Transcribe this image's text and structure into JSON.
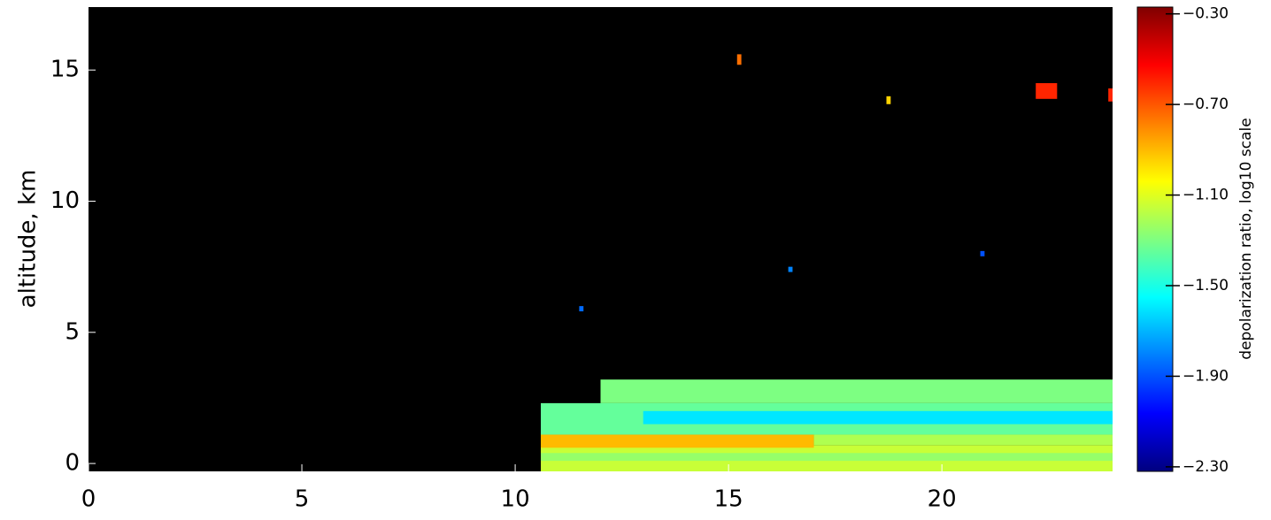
{
  "chart_data": {
    "type": "heatmap",
    "ylabel": "altitude, km",
    "colorbar_label": "depolarization ratio, log10 scale",
    "xlim": [
      0,
      24
    ],
    "xticks": [
      0,
      5,
      10,
      15,
      20
    ],
    "ylim": [
      -0.3,
      17.4
    ],
    "yticks": [
      0,
      5,
      10,
      15
    ],
    "clim": [
      -2.32,
      -0.27
    ],
    "cticks": [
      {
        "value": -0.3,
        "label": "−0.30"
      },
      {
        "value": -0.7,
        "label": "−0.70"
      },
      {
        "value": -1.1,
        "label": "−1.10"
      },
      {
        "value": -1.5,
        "label": "−1.50"
      },
      {
        "value": -1.9,
        "label": "−1.90"
      },
      {
        "value": -2.3,
        "label": "−2.30"
      }
    ],
    "colormap": "jet",
    "background": "#000000",
    "cells": [
      {
        "x": [
          10.6,
          24
        ],
        "y": [
          -0.3,
          0.7
        ],
        "value": -1.15
      },
      {
        "x": [
          10.6,
          24
        ],
        "y": [
          0.1,
          0.4
        ],
        "value": -1.25
      },
      {
        "x": [
          10.6,
          17
        ],
        "y": [
          0.6,
          1.1
        ],
        "value": -0.9
      },
      {
        "x": [
          10.6,
          24
        ],
        "y": [
          1.1,
          2.3
        ],
        "value": -1.35
      },
      {
        "x": [
          13,
          24
        ],
        "y": [
          1.5,
          2.0
        ],
        "value": -1.6
      },
      {
        "x": [
          17,
          24
        ],
        "y": [
          0.7,
          1.1
        ],
        "value": -1.2
      },
      {
        "x": [
          12,
          24
        ],
        "y": [
          2.3,
          3.2
        ],
        "value": -1.3
      },
      {
        "x": [
          22.2,
          22.7
        ],
        "y": [
          13.9,
          14.5
        ],
        "value": -0.6
      },
      {
        "x": [
          23.9,
          24
        ],
        "y": [
          13.8,
          14.3
        ],
        "value": -0.6
      },
      {
        "x": [
          15.2,
          15.3
        ],
        "y": [
          15.2,
          15.6
        ],
        "value": -0.75
      },
      {
        "x": [
          18.7,
          18.8
        ],
        "y": [
          13.7,
          14.0
        ],
        "value": -0.95
      },
      {
        "x": [
          11.5,
          11.6
        ],
        "y": [
          5.8,
          6.0
        ],
        "value": -1.85
      },
      {
        "x": [
          16.4,
          16.5
        ],
        "y": [
          7.3,
          7.5
        ],
        "value": -1.8
      },
      {
        "x": [
          20.9,
          21.0
        ],
        "y": [
          7.9,
          8.1
        ],
        "value": -1.9
      }
    ]
  }
}
